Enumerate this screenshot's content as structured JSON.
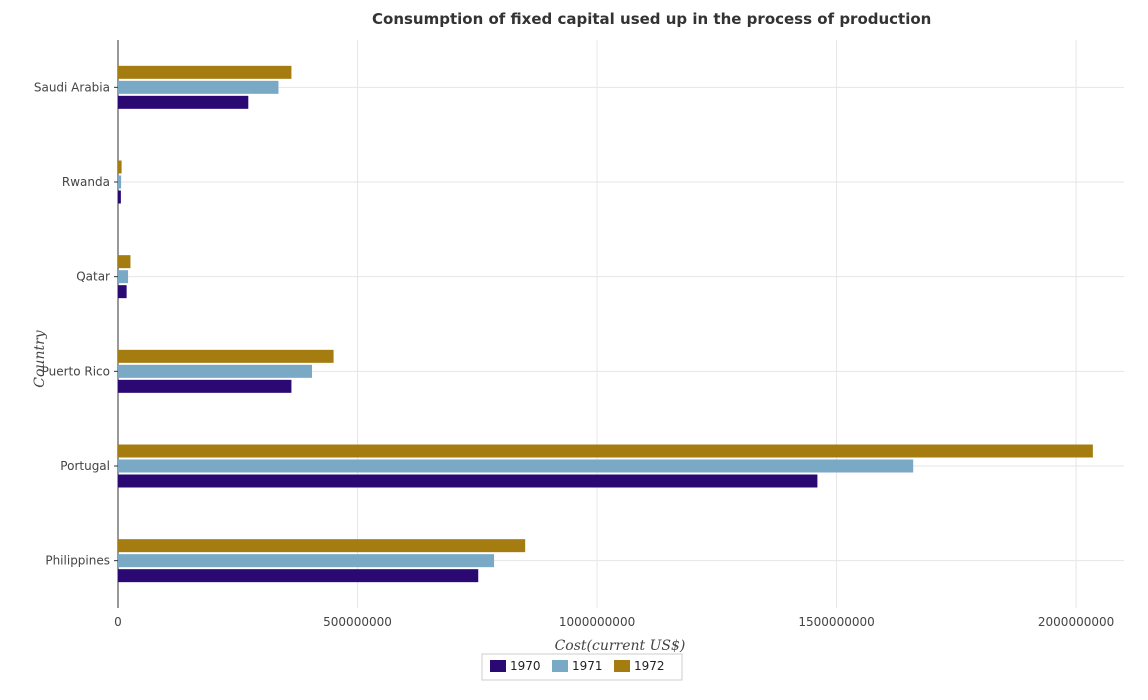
{
  "chart_data": {
    "type": "bar",
    "orientation": "horizontal",
    "title": "Consumption of fixed capital used up in the process of production",
    "xlabel": "Cost(current US$)",
    "ylabel": "Country",
    "xlim": [
      0,
      2100000000
    ],
    "x_ticks": [
      0,
      500000000,
      1000000000,
      1500000000,
      2000000000
    ],
    "x_tick_labels": [
      "0",
      "500000000",
      "1000000000",
      "1500000000",
      "2000000000"
    ],
    "grid": true,
    "legend_position": "bottom-center",
    "categories": [
      "Philippines",
      "Portugal",
      "Puerto Rico",
      "Qatar",
      "Rwanda",
      "Saudi Arabia"
    ],
    "series": [
      {
        "name": "1970",
        "color": "#2a0a72",
        "values": [
          752000000,
          1460000000,
          362000000,
          18000000,
          6000000,
          272000000
        ]
      },
      {
        "name": "1971",
        "color": "#7aa9c6",
        "values": [
          785000000,
          1660000000,
          405000000,
          21000000,
          6500000,
          335000000
        ]
      },
      {
        "name": "1972",
        "color": "#a57c10",
        "values": [
          850000000,
          2035000000,
          450000000,
          26000000,
          7500000,
          362000000
        ]
      }
    ]
  }
}
